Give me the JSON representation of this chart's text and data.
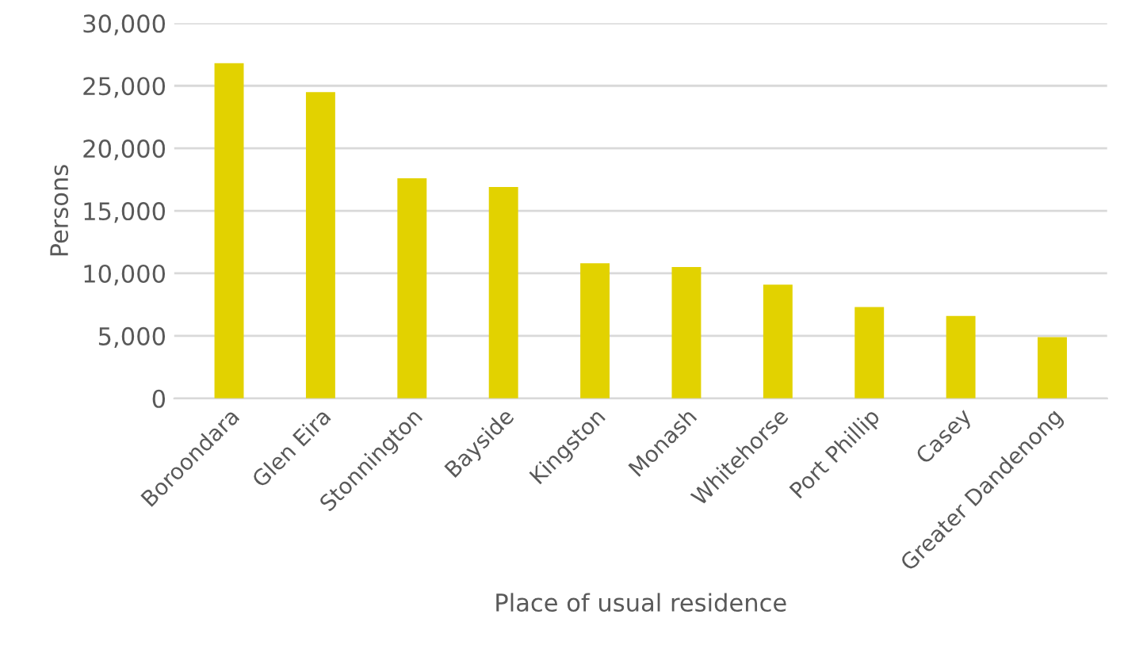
{
  "chart_data": {
    "type": "bar",
    "xlabel": "Place of usual residence",
    "ylabel": "Persons",
    "categories": [
      "Boroondara",
      "Glen Eira",
      "Stonnington",
      "Bayside",
      "Kingston",
      "Monash",
      "Whitehorse",
      "Port Phillip",
      "Casey",
      "Greater Dandenong"
    ],
    "values": [
      26800,
      24500,
      17600,
      16900,
      10800,
      10500,
      9100,
      7300,
      6600,
      4900
    ],
    "color": "#e2d200",
    "ylim": [
      0,
      30000
    ],
    "yticks": [
      {
        "value": 0,
        "label": "0"
      },
      {
        "value": 5000,
        "label": "5,000"
      },
      {
        "value": 10000,
        "label": "10,000"
      },
      {
        "value": 15000,
        "label": "15,000"
      },
      {
        "value": 20000,
        "label": "20,000"
      },
      {
        "value": 25000,
        "label": "25,000"
      },
      {
        "value": 30000,
        "label": "30,000"
      }
    ],
    "grid": "y"
  }
}
